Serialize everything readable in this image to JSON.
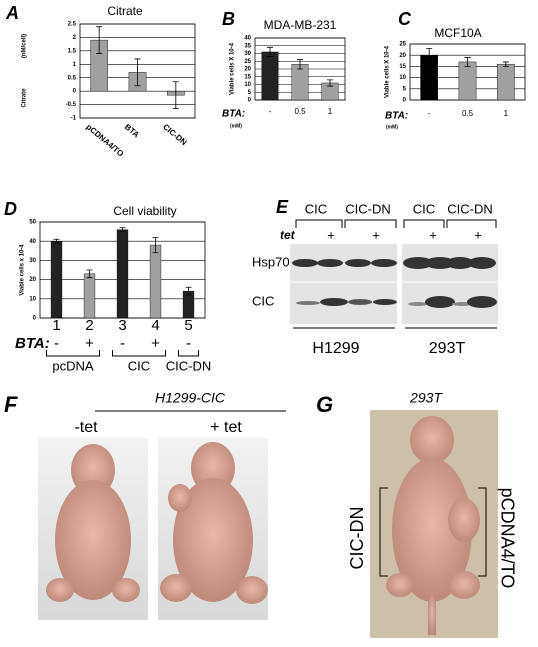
{
  "chart_data": [
    {
      "type": "bar",
      "panel": "A",
      "title": "Citrate",
      "ylabel": "Citrate",
      "ylabel_unit": "(nM/cell)",
      "categories": [
        "pCDNA4/TO",
        "BTA",
        "CIC-DN"
      ],
      "values": [
        1.9,
        0.7,
        -0.15
      ],
      "errors": [
        0.5,
        0.5,
        0.5
      ],
      "colors": [
        "#a0a0a0",
        "#a0a0a0",
        "#a0a0a0"
      ],
      "ylim": [
        -1,
        2.5
      ],
      "yticks": [
        -1,
        -0.5,
        0,
        0.5,
        1,
        1.5,
        2,
        2.5
      ],
      "grid": true
    },
    {
      "type": "bar",
      "panel": "B",
      "title": "MDA-MB-231",
      "ylabel": "Viable cells X 10-4",
      "x_label": "BTA:",
      "x_unit": "(mM)",
      "categories": [
        "-",
        "0.5",
        "1"
      ],
      "values": [
        31,
        23,
        11
      ],
      "errors": [
        3,
        3,
        2
      ],
      "colors": [
        "#222222",
        "#a0a0a0",
        "#a0a0a0"
      ],
      "ylim": [
        0,
        40
      ],
      "yticks": [
        0,
        5,
        10,
        15,
        20,
        25,
        30,
        35,
        40
      ],
      "grid": true
    },
    {
      "type": "bar",
      "panel": "C",
      "title": "MCF10A",
      "ylabel": "Viable cells X 10-4",
      "x_label": "BTA:",
      "x_unit": "(mM)",
      "categories": [
        "-",
        "0.5",
        "1"
      ],
      "values": [
        20,
        17,
        16
      ],
      "errors": [
        3,
        2,
        1
      ],
      "colors": [
        "#000000",
        "#a0a0a0",
        "#a0a0a0"
      ],
      "ylim": [
        0,
        25
      ],
      "yticks": [
        0,
        5,
        10,
        15,
        20,
        25
      ],
      "grid": true
    },
    {
      "type": "bar",
      "panel": "D",
      "title": "Cell viability",
      "ylabel": "Viable cells x 10-4",
      "x_label": "BTA:",
      "categories": [
        "1",
        "2",
        "3",
        "4",
        "5"
      ],
      "treatment": [
        "-",
        "+",
        "-",
        "+",
        "-"
      ],
      "groups": [
        "pcDNA",
        "CIC",
        "CIC-DN"
      ],
      "values": [
        40,
        23,
        46,
        38,
        14
      ],
      "errors": [
        1,
        2,
        1,
        4,
        2
      ],
      "colors": [
        "#222222",
        "#a0a0a0",
        "#222222",
        "#a0a0a0",
        "#222222"
      ],
      "ylim": [
        0,
        50
      ],
      "yticks": [
        0,
        10,
        20,
        30,
        40,
        50
      ],
      "grid": true
    }
  ],
  "panel_e": {
    "letter": "E",
    "lanes": [
      "CIC",
      "CIC-DN",
      "CIC",
      "CIC-DN"
    ],
    "tet_label": "tet",
    "tet": [
      "+",
      "+",
      "+",
      "+"
    ],
    "rows": [
      "Hsp70",
      "CIC"
    ],
    "cell_lines": [
      "H1299",
      "293T"
    ]
  },
  "panel_f": {
    "letter": "F",
    "title": "H1299-CIC",
    "conditions": [
      "-tet",
      "+ tet"
    ]
  },
  "panel_g": {
    "letter": "G",
    "title": "293T",
    "left": "CIC-DN",
    "right": "pCDNA4/TO"
  }
}
